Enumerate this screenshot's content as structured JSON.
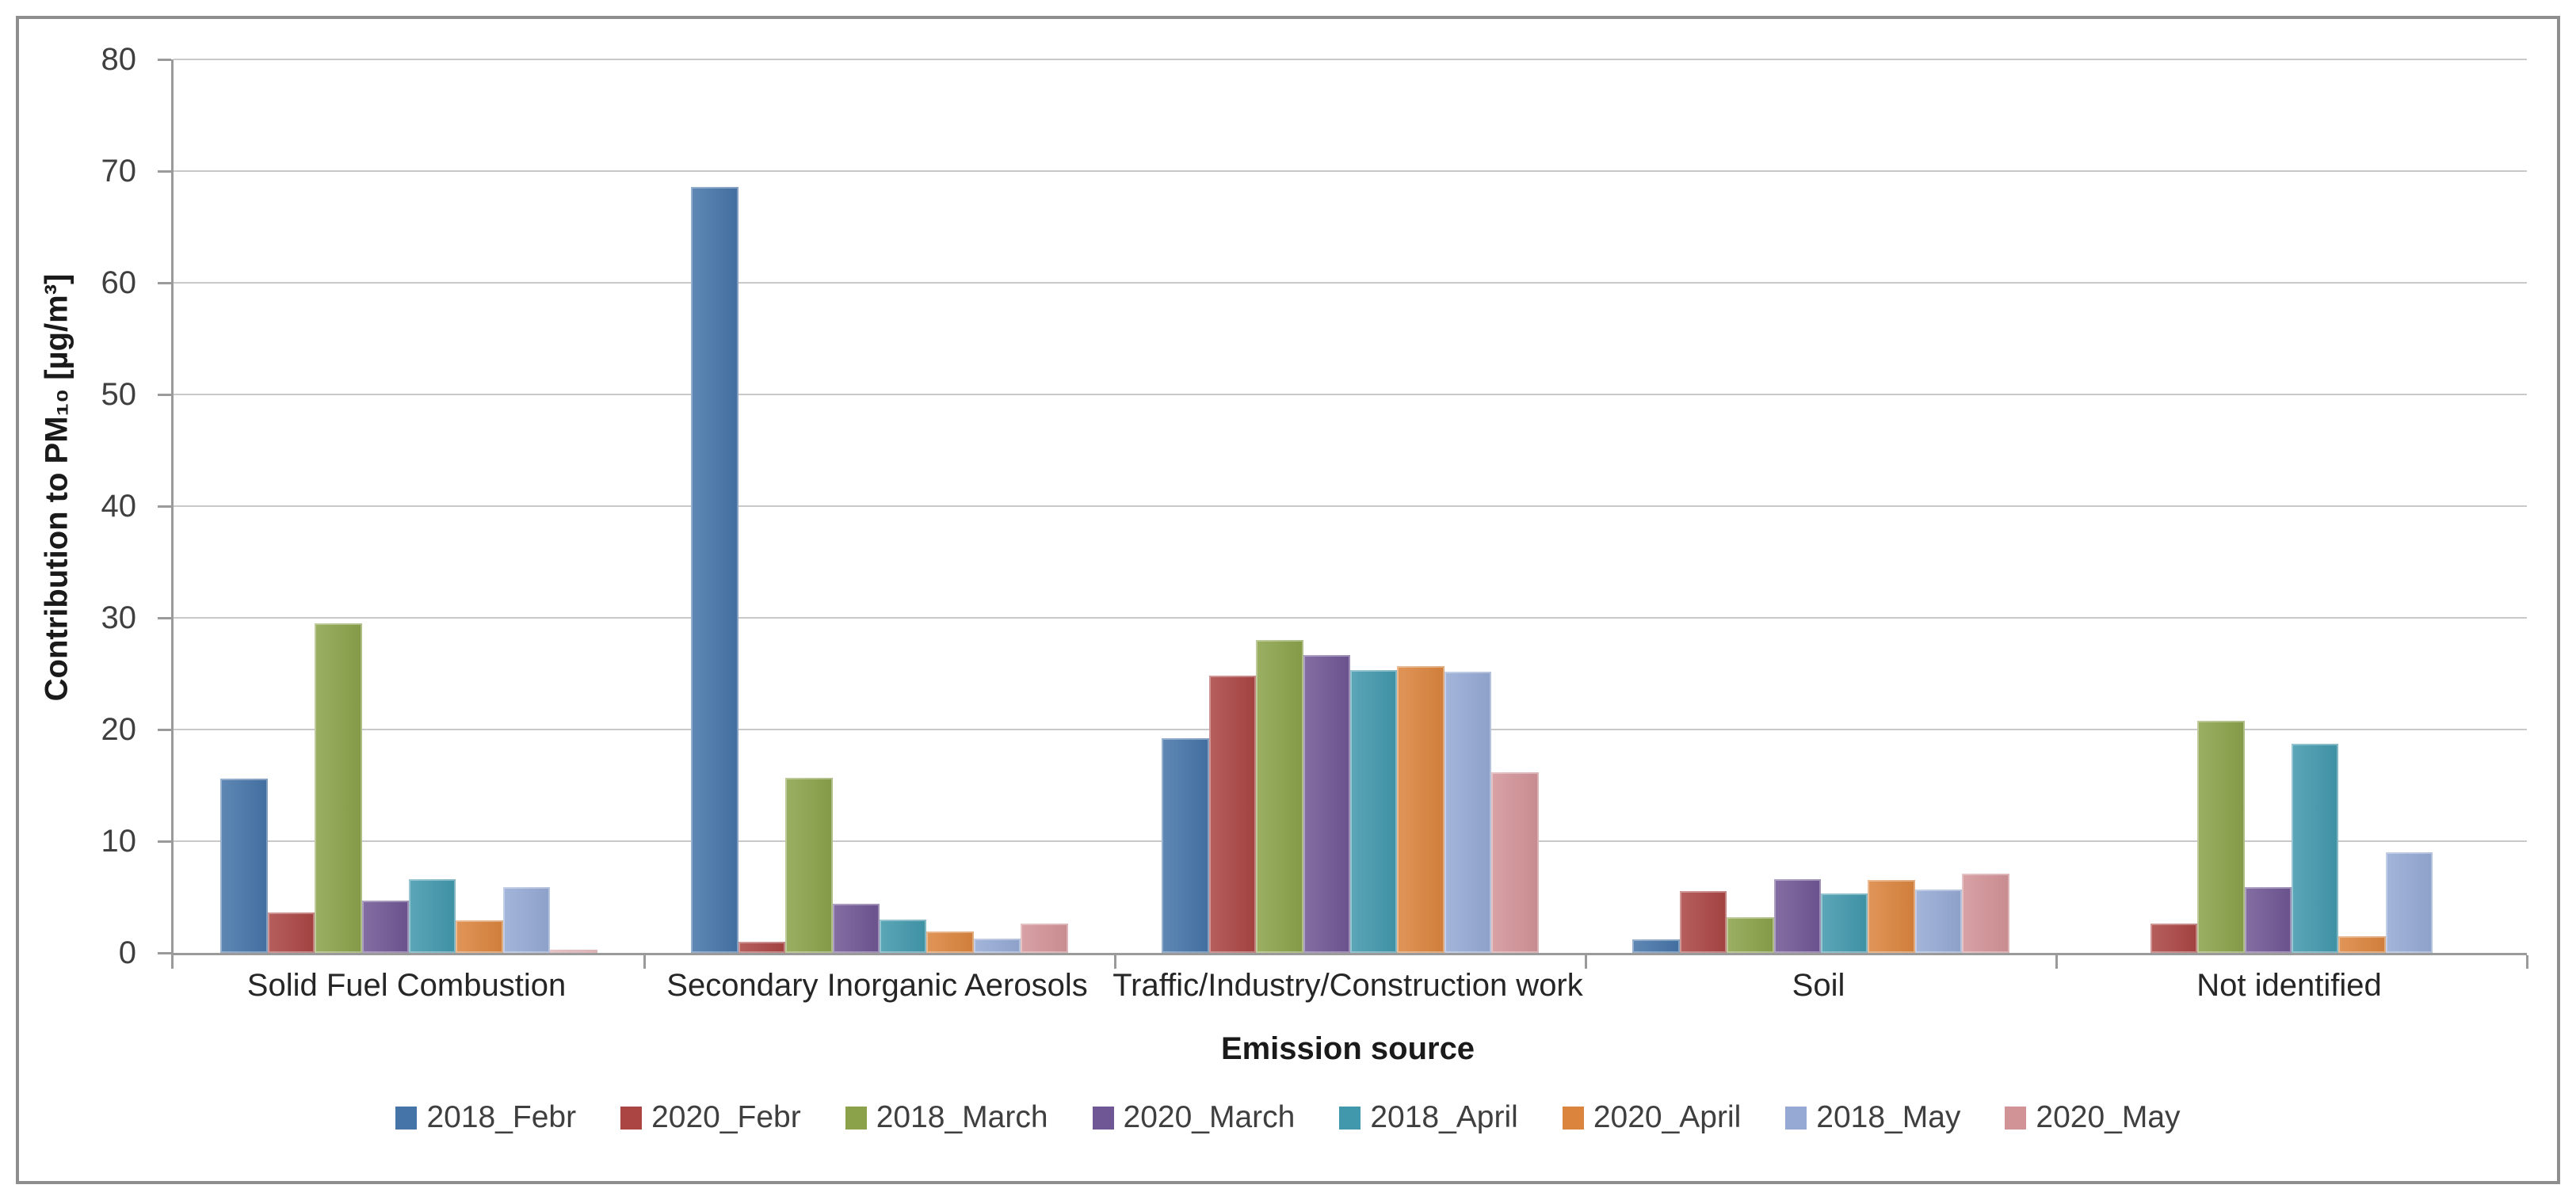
{
  "frame": {
    "background": "#ffffff",
    "border_color": "#8e8e8e",
    "grid_color": "#c9c9c9",
    "axis_color": "#9a9a9a",
    "text_color": "#3f3f3f"
  },
  "chart_data": {
    "type": "bar",
    "title": "",
    "xlabel": "Emission source",
    "ylabel": "Contribution to PM₁₀ [µg/m³]",
    "ylim": [
      0,
      80
    ],
    "ytick_step": 10,
    "grid": true,
    "legend_position": "bottom",
    "categories": [
      "Solid Fuel Combustion",
      "Secondary Inorganic Aerosols",
      "Traffic/Industry/Construction work",
      "Soil",
      "Not identified"
    ],
    "series": [
      {
        "name": "2018_Febr",
        "color": "#4574A8",
        "values": [
          15.6,
          68.6,
          19.2,
          1.2,
          0
        ]
      },
      {
        "name": "2020_Febr",
        "color": "#AA4543",
        "values": [
          3.6,
          1.0,
          24.8,
          5.5,
          2.6
        ]
      },
      {
        "name": "2018_March",
        "color": "#8BA24A",
        "values": [
          29.5,
          15.7,
          28.0,
          3.2,
          20.8
        ]
      },
      {
        "name": "2020_March",
        "color": "#6F5694",
        "values": [
          4.7,
          4.4,
          26.7,
          6.6,
          5.9
        ]
      },
      {
        "name": "2018_April",
        "color": "#4198AC",
        "values": [
          6.6,
          3.0,
          25.3,
          5.3,
          18.7
        ]
      },
      {
        "name": "2020_April",
        "color": "#DB843D",
        "values": [
          2.9,
          1.9,
          25.7,
          6.5,
          1.5
        ]
      },
      {
        "name": "2018_May",
        "color": "#95A9D4",
        "values": [
          5.9,
          1.3,
          25.2,
          5.7,
          9.0
        ]
      },
      {
        "name": "2020_May",
        "color": "#D29397",
        "values": [
          0.3,
          2.6,
          16.2,
          7.1,
          0
        ]
      }
    ]
  }
}
